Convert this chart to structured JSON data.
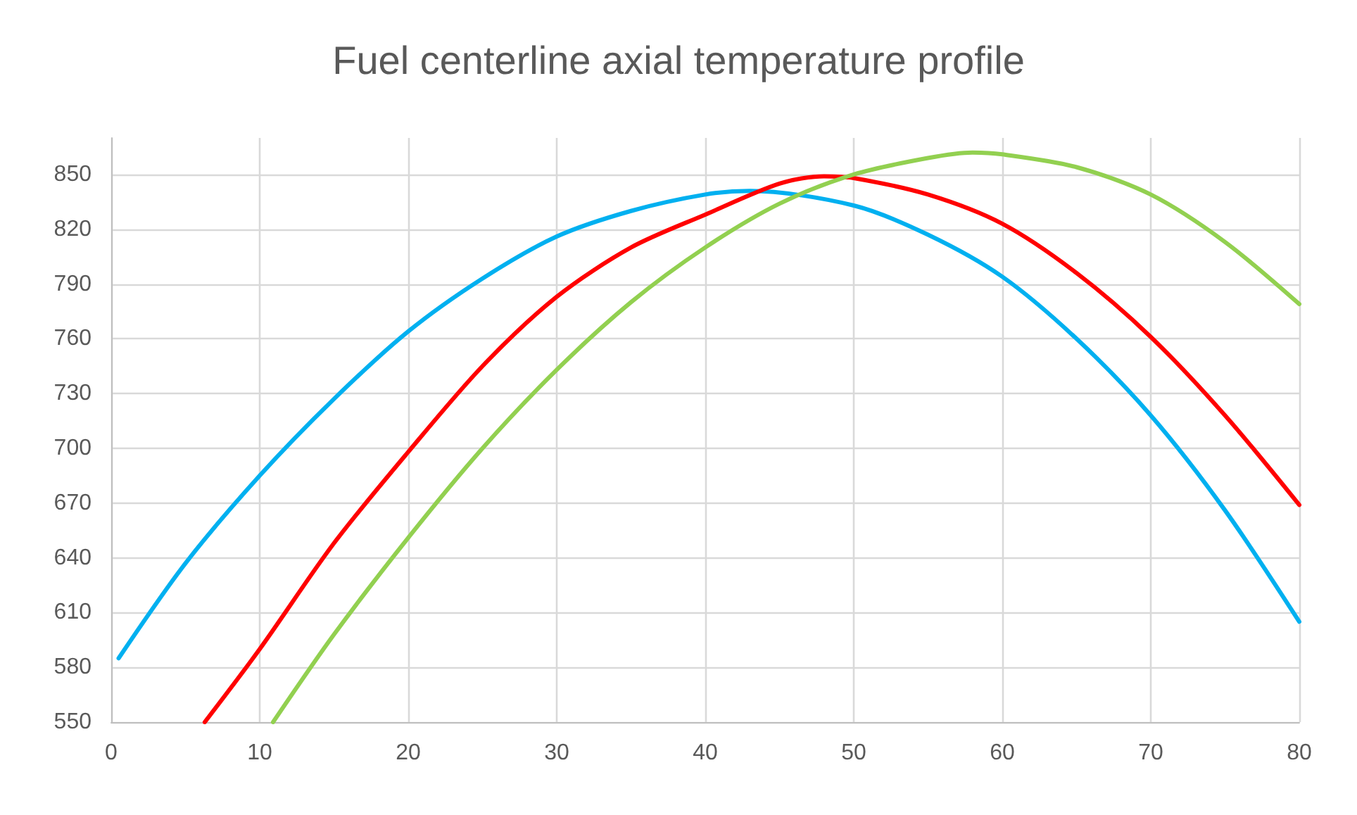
{
  "chart_data": {
    "type": "line",
    "title": "Fuel centerline axial temperature profile",
    "xlim": [
      0,
      80
    ],
    "xticks": [
      0,
      10,
      20,
      30,
      40,
      50,
      60,
      70,
      80
    ],
    "ylim": [
      550,
      870
    ],
    "yticks": [
      550,
      580,
      610,
      640,
      670,
      700,
      730,
      760,
      790,
      820,
      850
    ],
    "grid": true,
    "marker": "none",
    "line_style": "solid",
    "series": [
      {
        "color": "#00b0f0",
        "x": [
          0.5,
          5,
          10,
          15,
          20,
          25,
          30,
          35,
          40,
          43,
          50,
          55,
          60,
          65,
          70,
          75,
          80
        ],
        "values": [
          585,
          637,
          685,
          727,
          764,
          793,
          816,
          830,
          839,
          841,
          833,
          817,
          794,
          760,
          718,
          666,
          605
        ]
      },
      {
        "color": "#ff0000",
        "x": [
          6.3,
          10,
          15,
          20,
          25,
          30,
          35,
          40,
          45,
          48,
          50,
          55,
          60,
          65,
          70,
          75,
          80
        ],
        "values": [
          550,
          590,
          648,
          698,
          745,
          783,
          810,
          828,
          845,
          849,
          848,
          839,
          823,
          796,
          761,
          718,
          669
        ]
      },
      {
        "color": "#92d050",
        "x": [
          10.9,
          15,
          20,
          25,
          30,
          35,
          40,
          45,
          50,
          55,
          58,
          60,
          65,
          70,
          75,
          80
        ],
        "values": [
          550,
          598,
          651,
          700,
          743,
          780,
          810,
          834,
          850,
          859,
          862,
          861,
          854,
          839,
          813,
          779
        ]
      }
    ]
  }
}
